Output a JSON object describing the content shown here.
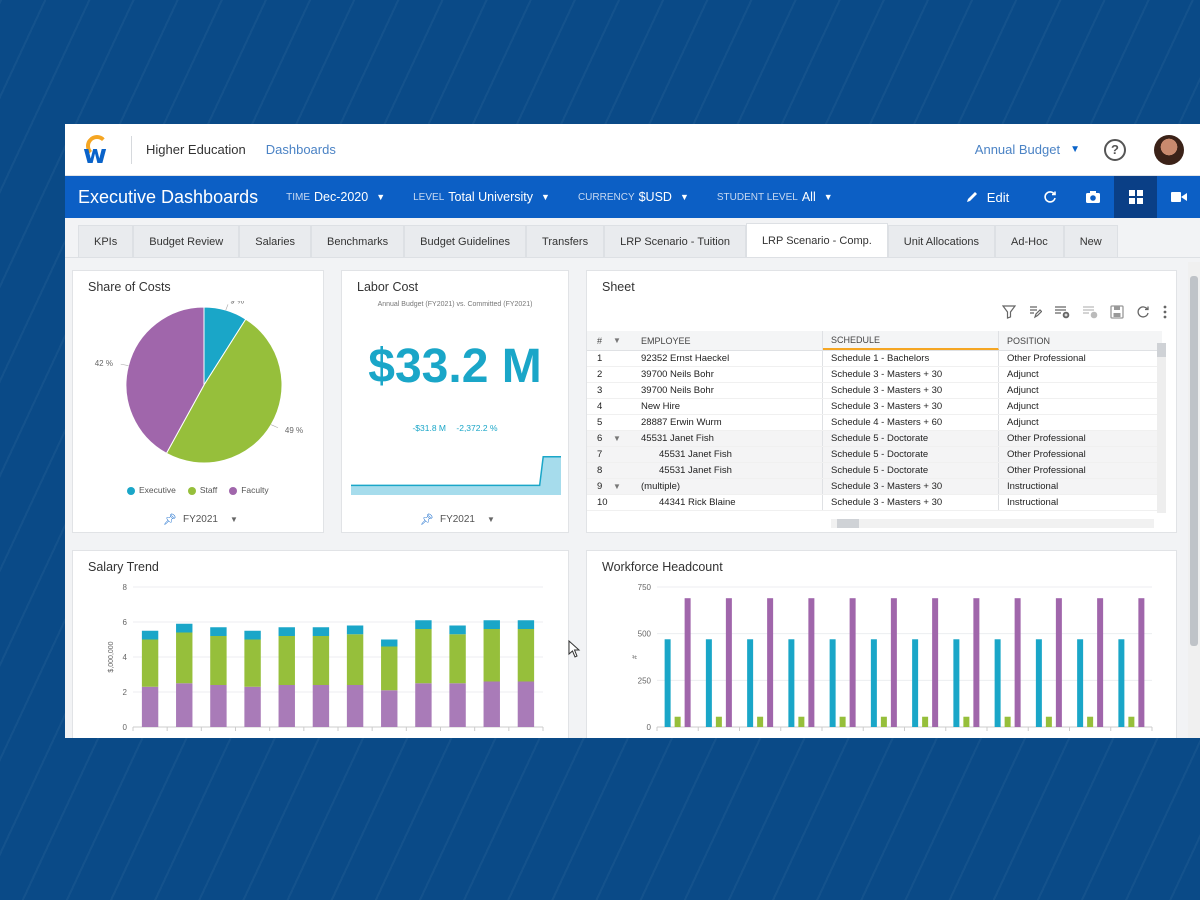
{
  "header": {
    "breadcrumb_1": "Higher Education",
    "breadcrumb_2": "Dashboards",
    "budget_selector": "Annual Budget",
    "help_glyph": "?"
  },
  "toolbar": {
    "title": "Executive Dashboards",
    "filters": [
      {
        "label": "TIME",
        "value": "Dec-2020"
      },
      {
        "label": "LEVEL",
        "value": "Total University"
      },
      {
        "label": "CURRENCY",
        "value": "$USD"
      },
      {
        "label": "STUDENT LEVEL",
        "value": "All"
      }
    ],
    "edit_label": "Edit"
  },
  "tabs": [
    "KPIs",
    "Budget Review",
    "Salaries",
    "Benchmarks",
    "Budget Guidelines",
    "Transfers",
    "LRP Scenario - Tuition",
    "LRP Scenario - Comp.",
    "Unit Allocations",
    "Ad-Hoc",
    "New"
  ],
  "active_tab": "LRP Scenario - Comp.",
  "share_of_costs": {
    "title": "Share of Costs",
    "fy": "FY2021",
    "chart_data": {
      "type": "pie",
      "slices": [
        {
          "name": "Executive",
          "value": 9,
          "label": "9 %",
          "color": "#1aa6c8"
        },
        {
          "name": "Staff",
          "value": 49,
          "label": "49 %",
          "color": "#96bf3b"
        },
        {
          "name": "Faculty",
          "value": 42,
          "label": "42 %",
          "color": "#a066ab"
        }
      ]
    }
  },
  "labor_cost": {
    "title": "Labor Cost",
    "caption": "Annual Budget (FY2021) vs. Committed (FY2021)",
    "big_value": "$33.2 M",
    "delta_1": "-$31.8 M",
    "delta_2": "-2,372.2 %",
    "fy": "FY2021",
    "chart_data": {
      "type": "area",
      "values": [
        1,
        1,
        1,
        1,
        1,
        1,
        1,
        1,
        1,
        1,
        1,
        1,
        1,
        1,
        1,
        1,
        1,
        1,
        1,
        1,
        1,
        1,
        1,
        1,
        1,
        1,
        1,
        1,
        1,
        1,
        1,
        1,
        1,
        1,
        1,
        1,
        1,
        1,
        1,
        1,
        1,
        1,
        1,
        1,
        1,
        1,
        1,
        1,
        1,
        1,
        1,
        1,
        1,
        1,
        4,
        4,
        4,
        4,
        4,
        4
      ]
    }
  },
  "sheet": {
    "title": "Sheet",
    "columns": [
      "#",
      "EMPLOYEE",
      "SCHEDULE",
      "POSITION"
    ],
    "rows": [
      {
        "n": "1",
        "exp": "",
        "emp": "92352 Ernst Haeckel",
        "sch": "Schedule 1 - Bachelors",
        "pos": "Other Professional",
        "indent": false,
        "alt": false
      },
      {
        "n": "2",
        "exp": "",
        "emp": "39700 Neils Bohr",
        "sch": "Schedule 3 - Masters + 30",
        "pos": "Adjunct",
        "indent": false,
        "alt": false
      },
      {
        "n": "3",
        "exp": "",
        "emp": "39700 Neils Bohr",
        "sch": "Schedule 3 - Masters + 30",
        "pos": "Adjunct",
        "indent": false,
        "alt": false
      },
      {
        "n": "4",
        "exp": "",
        "emp": "New Hire",
        "sch": "Schedule 3 - Masters + 30",
        "pos": "Adjunct",
        "indent": false,
        "alt": false
      },
      {
        "n": "5",
        "exp": "",
        "emp": "28887 Erwin Wurm",
        "sch": "Schedule 4 - Masters + 60",
        "pos": "Adjunct",
        "indent": false,
        "alt": false
      },
      {
        "n": "6",
        "exp": "▼",
        "emp": "45531 Janet Fish",
        "sch": "Schedule 5 - Doctorate",
        "pos": "Other Professional",
        "indent": false,
        "alt": true
      },
      {
        "n": "7",
        "exp": "",
        "emp": "45531 Janet Fish",
        "sch": "Schedule 5 - Doctorate",
        "pos": "Other Professional",
        "indent": true,
        "alt": true
      },
      {
        "n": "8",
        "exp": "",
        "emp": "45531 Janet Fish",
        "sch": "Schedule 5 - Doctorate",
        "pos": "Other Professional",
        "indent": true,
        "alt": true
      },
      {
        "n": "9",
        "exp": "▼",
        "emp": "(multiple)",
        "sch": "Schedule 3 - Masters + 30",
        "pos": "Instructional",
        "indent": false,
        "alt": true
      },
      {
        "n": "10",
        "exp": "",
        "emp": "44341 Rick Blaine",
        "sch": "Schedule 3 - Masters + 30",
        "pos": "Instructional",
        "indent": true,
        "alt": false
      }
    ]
  },
  "salary_trend": {
    "title": "Salary Trend",
    "chart_data": {
      "type": "bar",
      "stacked": true,
      "ylabel": "$,000,000",
      "ylim": [
        0,
        8
      ],
      "yticks": [
        "0",
        "2",
        "4",
        "6",
        "8"
      ],
      "series": [
        {
          "color": "#a97bb8",
          "values": [
            2.3,
            2.5,
            2.4,
            2.3,
            2.4,
            2.4,
            2.4,
            2.1,
            2.5,
            2.5,
            2.6,
            2.6
          ]
        },
        {
          "color": "#96bf3b",
          "values": [
            2.7,
            2.9,
            2.8,
            2.7,
            2.8,
            2.8,
            2.9,
            2.5,
            3.1,
            2.8,
            3.0,
            3.0
          ]
        },
        {
          "color": "#1aa6c8",
          "values": [
            0.5,
            0.5,
            0.5,
            0.5,
            0.5,
            0.5,
            0.5,
            0.4,
            0.5,
            0.5,
            0.5,
            0.5
          ]
        }
      ]
    }
  },
  "workforce_headcount": {
    "title": "Workforce Headcount",
    "chart_data": {
      "type": "bar",
      "ylabel": "#",
      "ylim": [
        0,
        750
      ],
      "yticks": [
        "0",
        "250",
        "500",
        "750"
      ],
      "series": [
        {
          "color": "#1aa6c8",
          "values": [
            470,
            470,
            470,
            470,
            470,
            470,
            470,
            470,
            470,
            470,
            470,
            470
          ]
        },
        {
          "color": "#96bf3b",
          "values": [
            55,
            55,
            55,
            55,
            55,
            55,
            55,
            55,
            55,
            55,
            55,
            55
          ]
        },
        {
          "color": "#a066ab",
          "values": [
            690,
            690,
            690,
            690,
            690,
            690,
            690,
            690,
            690,
            690,
            690,
            690
          ]
        }
      ]
    }
  }
}
